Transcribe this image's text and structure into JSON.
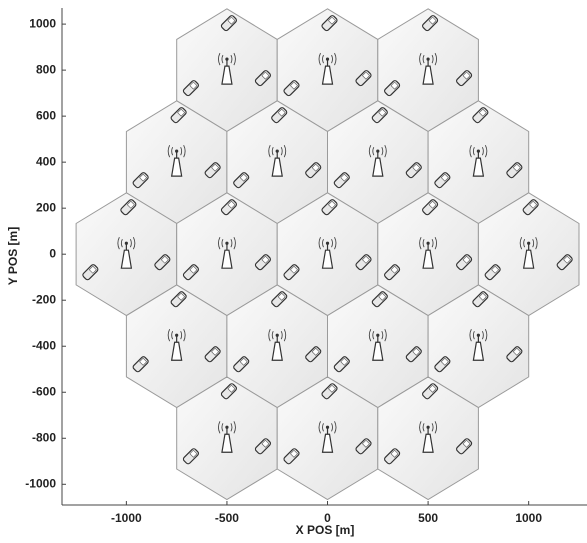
{
  "chart_data": {
    "type": "hexcell",
    "x_label": "X POS [m]",
    "y_label": "Y POS [m]",
    "x": [
      -500,
      0,
      500,
      -750,
      -250,
      250,
      750,
      -1000,
      -500,
      0,
      500,
      1000,
      -750,
      -250,
      250,
      750,
      -500,
      0,
      500
    ],
    "y": [
      800,
      800,
      800,
      400,
      400,
      400,
      400,
      0,
      0,
      0,
      0,
      0,
      -400,
      -400,
      -400,
      -400,
      -800,
      -800,
      -800
    ],
    "xlim": [
      -1320,
      1290
    ],
    "ylim": [
      -1090,
      1070
    ],
    "xticks": [
      -1000,
      -500,
      0,
      500,
      1000
    ],
    "yticks": [
      -1000,
      -800,
      -600,
      -400,
      -200,
      0,
      200,
      400,
      600,
      800,
      1000
    ],
    "cell_fill": "#f1f1f1",
    "cell_stroke": "#9a9a9a"
  }
}
